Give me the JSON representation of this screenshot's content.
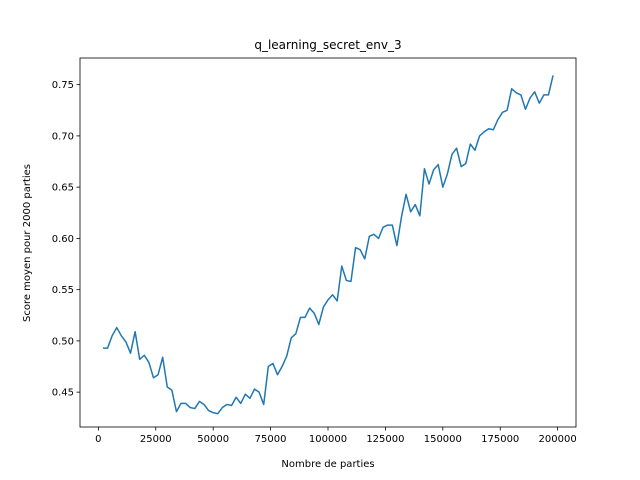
{
  "chart_data": {
    "type": "line",
    "title": "q_learning_secret_env_3",
    "xlabel": "Nombre de parties",
    "ylabel": "Score moyen pour 2000 parties",
    "xlim": [
      -8000,
      208000
    ],
    "ylim": [
      0.416,
      0.776
    ],
    "xticks": [
      0,
      25000,
      50000,
      75000,
      100000,
      125000,
      150000,
      175000,
      200000
    ],
    "yticks": [
      0.45,
      0.5,
      0.55,
      0.6,
      0.65,
      0.7,
      0.75
    ],
    "ytick_labels": [
      "0.45",
      "0.50",
      "0.55",
      "0.60",
      "0.65",
      "0.70",
      "0.75"
    ],
    "grid": false,
    "line_color": "#1f77b4",
    "series": [
      {
        "x": [
          2000,
          4000,
          6000,
          8000,
          10000,
          12000,
          14000,
          16000,
          18000,
          20000,
          22000,
          24000,
          26000,
          28000,
          30000,
          32000,
          34000,
          36000,
          38000,
          40000,
          42000,
          44000,
          46000,
          48000,
          50000,
          52000,
          54000,
          56000,
          58000,
          60000,
          62000,
          64000,
          66000,
          68000,
          70000,
          72000,
          74000,
          76000,
          78000,
          80000,
          82000,
          84000,
          86000,
          88000,
          90000,
          92000,
          94000,
          96000,
          98000,
          100000,
          102000,
          104000,
          106000,
          108000,
          110000,
          112000,
          114000,
          116000,
          118000,
          120000,
          122000,
          124000,
          126000,
          128000,
          130000,
          132000,
          134000,
          136000,
          138000,
          140000,
          142000,
          144000,
          146000,
          148000,
          150000,
          152000,
          154000,
          156000,
          158000,
          160000,
          162000,
          164000,
          166000,
          168000,
          170000,
          172000,
          174000,
          176000,
          178000,
          180000,
          182000,
          184000,
          186000,
          188000,
          190000,
          192000,
          194000,
          196000,
          198000
        ],
        "values": [
          0.493,
          0.493,
          0.505,
          0.513,
          0.505,
          0.499,
          0.488,
          0.509,
          0.482,
          0.486,
          0.479,
          0.464,
          0.467,
          0.484,
          0.455,
          0.452,
          0.431,
          0.439,
          0.439,
          0.435,
          0.434,
          0.441,
          0.438,
          0.432,
          0.43,
          0.429,
          0.435,
          0.438,
          0.437,
          0.445,
          0.439,
          0.448,
          0.444,
          0.453,
          0.45,
          0.438,
          0.475,
          0.478,
          0.467,
          0.475,
          0.485,
          0.503,
          0.507,
          0.523,
          0.523,
          0.532,
          0.527,
          0.516,
          0.533,
          0.54,
          0.545,
          0.539,
          0.573,
          0.559,
          0.558,
          0.591,
          0.589,
          0.58,
          0.602,
          0.604,
          0.6,
          0.611,
          0.613,
          0.613,
          0.593,
          0.621,
          0.643,
          0.626,
          0.633,
          0.622,
          0.668,
          0.653,
          0.667,
          0.672,
          0.65,
          0.663,
          0.682,
          0.688,
          0.67,
          0.673,
          0.692,
          0.686,
          0.7,
          0.704,
          0.707,
          0.706,
          0.716,
          0.723,
          0.725,
          0.746,
          0.742,
          0.74,
          0.726,
          0.737,
          0.743,
          0.732,
          0.74,
          0.74,
          0.759
        ]
      }
    ]
  }
}
